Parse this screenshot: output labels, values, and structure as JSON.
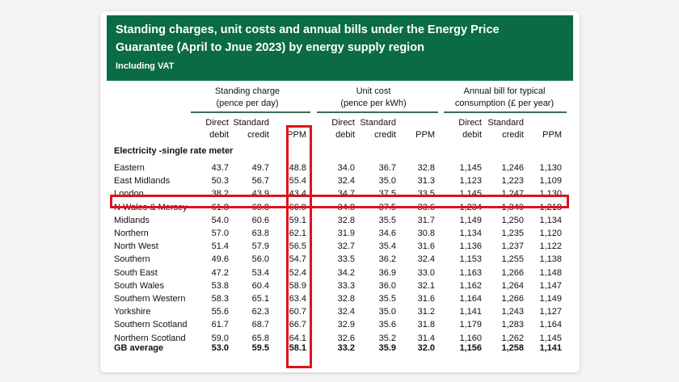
{
  "banner": {
    "title_line1": "Standing charges, unit costs and annual bills under the Energy Price",
    "title_line2": "Guarantee (April to Jnue 2023) by energy supply region",
    "subtitle": "Including VAT"
  },
  "groups": [
    {
      "line1": "Standing charge",
      "line2": "(pence per day)"
    },
    {
      "line1": "Unit cost",
      "line2": "(pence per kWh)"
    },
    {
      "line1": "Annual bill for typical",
      "line2": "consumption (£ per year)"
    }
  ],
  "columns": [
    {
      "line1": "Direct",
      "line2": "debit"
    },
    {
      "line1": "Standard",
      "line2": "credit"
    },
    {
      "line1": "",
      "line2": "PPM"
    },
    {
      "line1": "Direct",
      "line2": "debit"
    },
    {
      "line1": "Standard",
      "line2": "credit"
    },
    {
      "line1": "",
      "line2": "PPM"
    },
    {
      "line1": "Direct",
      "line2": "debit"
    },
    {
      "line1": "Standard",
      "line2": "credit"
    },
    {
      "line1": "",
      "line2": "PPM"
    }
  ],
  "section_title": "Electricity -single rate meter",
  "rows": [
    {
      "region": "Eastern",
      "values": [
        "43.7",
        "49.7",
        "48.8",
        "34.0",
        "36.7",
        "32.8",
        "1,145",
        "1,246",
        "1,130"
      ]
    },
    {
      "region": "East Midlands",
      "values": [
        "50.3",
        "56.7",
        "55.4",
        "32.4",
        "35.0",
        "31.3",
        "1,123",
        "1,223",
        "1,109"
      ]
    },
    {
      "region": "London",
      "values": [
        "38.2",
        "43.9",
        "43.4",
        "34.7",
        "37.5",
        "33.5",
        "1,145",
        "1,247",
        "1,130"
      ]
    },
    {
      "region": "N Wales & Mersey",
      "values": [
        "61.8",
        "68.8",
        "66.9",
        "34.8",
        "37.5",
        "33.6",
        "1,234",
        "1,340",
        "1,218"
      ]
    },
    {
      "region": "Midlands",
      "values": [
        "54.0",
        "60.6",
        "59.1",
        "32.8",
        "35.5",
        "31.7",
        "1,149",
        "1,250",
        "1,134"
      ]
    },
    {
      "region": "Northern",
      "values": [
        "57.0",
        "63.8",
        "62.1",
        "31.9",
        "34.6",
        "30.8",
        "1,134",
        "1,235",
        "1,120"
      ]
    },
    {
      "region": "North West",
      "values": [
        "51.4",
        "57.9",
        "56.5",
        "32.7",
        "35.4",
        "31.6",
        "1,136",
        "1,237",
        "1,122"
      ]
    },
    {
      "region": "Southern",
      "values": [
        "49.6",
        "56.0",
        "54.7",
        "33.5",
        "36.2",
        "32.4",
        "1,153",
        "1,255",
        "1,138"
      ]
    },
    {
      "region": "South East",
      "values": [
        "47.2",
        "53.4",
        "52.4",
        "34.2",
        "36.9",
        "33.0",
        "1,163",
        "1,266",
        "1,148"
      ]
    },
    {
      "region": "South Wales",
      "values": [
        "53.8",
        "60.4",
        "58.9",
        "33.3",
        "36.0",
        "32.1",
        "1,162",
        "1,264",
        "1,147"
      ]
    },
    {
      "region": "Southern Western",
      "values": [
        "58.3",
        "65.1",
        "63.4",
        "32.8",
        "35.5",
        "31.6",
        "1,164",
        "1,266",
        "1,149"
      ]
    },
    {
      "region": "Yorkshire",
      "values": [
        "55.6",
        "62.3",
        "60.7",
        "32.4",
        "35.0",
        "31.2",
        "1,141",
        "1,243",
        "1,127"
      ]
    },
    {
      "region": "Southern Scotland",
      "values": [
        "61.7",
        "68.7",
        "66.7",
        "32.9",
        "35.6",
        "31.8",
        "1,179",
        "1,283",
        "1,164"
      ]
    },
    {
      "region": "Northern Scotland",
      "values": [
        "59.0",
        "65.8",
        "64.1",
        "32.6",
        "35.2",
        "31.4",
        "1,160",
        "1,262",
        "1,145"
      ]
    }
  ],
  "average": {
    "region": "GB average",
    "values": [
      "53.0",
      "59.5",
      "58.1",
      "33.2",
      "35.9",
      "32.0",
      "1,156",
      "1,258",
      "1,141"
    ]
  },
  "highlight_color": "#e0121b",
  "banner_color": "#0b6b45"
}
